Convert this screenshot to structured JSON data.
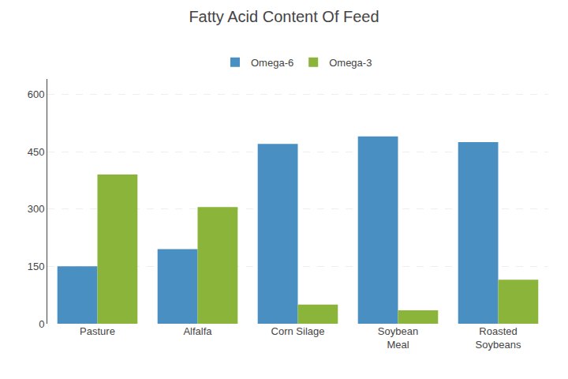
{
  "chart_data": {
    "type": "bar",
    "title": "Fatty Acid Content Of Feed",
    "categories": [
      "Pasture",
      "Alfalfa",
      "Corn Silage",
      "Soybean\nMeal",
      "Roasted\nSoybeans"
    ],
    "series": [
      {
        "name": "Omega-6",
        "color": "#4a8fc2",
        "values": [
          150,
          195,
          470,
          490,
          475
        ]
      },
      {
        "name": "Omega-3",
        "color": "#8ab53a",
        "values": [
          390,
          305,
          50,
          35,
          115
        ]
      }
    ],
    "ylim": [
      0,
      640
    ],
    "yticks": [
      0,
      150,
      300,
      450,
      600
    ],
    "grid": true,
    "legend": "top"
  }
}
